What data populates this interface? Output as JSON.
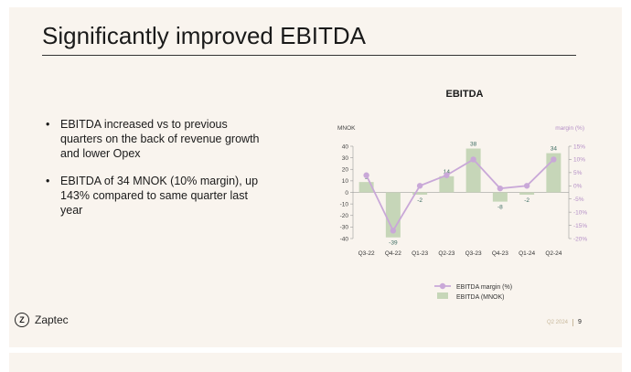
{
  "slide": {
    "title": "Significantly improved EBITDA",
    "bullets": [
      "EBITDA increased vs to previous quarters on the back of revenue growth and lower Opex",
      "EBITDA of 34 MNOK (10% margin), up 143% compared to same quarter last year"
    ],
    "brand": "Zaptec",
    "brand_mark": "Z",
    "footer_quarter": "Q2 2024",
    "page_number": "9"
  },
  "colors": {
    "bar": "#c6d6b8",
    "line": "#c9a8d8",
    "bar_label": "#3a6a60",
    "margin_axis": "#b48ec6"
  },
  "chart_data": {
    "type": "bar",
    "title": "EBITDA",
    "categories": [
      "Q3-22",
      "Q4-22",
      "Q1-23",
      "Q2-23",
      "Q3-23",
      "Q4-23",
      "Q1-24",
      "Q2-24"
    ],
    "series": [
      {
        "name": "EBITDA (MNOK)",
        "type": "bar",
        "axis": "left",
        "values": [
          9,
          -39,
          -2,
          14,
          38,
          -8,
          -2,
          34
        ],
        "labels": [
          "9",
          "-39",
          "-2",
          "14",
          "38",
          "-8",
          "-2",
          "34"
        ]
      },
      {
        "name": "EBITDA margin (%)",
        "type": "line",
        "axis": "right",
        "values": [
          4,
          -17,
          0,
          4,
          10,
          -1,
          0,
          10
        ]
      }
    ],
    "ylabel": "MNOK",
    "y2label": "margin (%)",
    "ylim": [
      -40,
      40
    ],
    "yticks": [
      40,
      30,
      20,
      10,
      0,
      -10,
      -20,
      -30,
      -40
    ],
    "y2lim": [
      -20,
      15
    ],
    "y2ticks": [
      "15%",
      "10%",
      "5%",
      "0%",
      "-5%",
      "-10%",
      "-15%",
      "-20%"
    ],
    "grid": false,
    "legend_position": "bottom"
  }
}
